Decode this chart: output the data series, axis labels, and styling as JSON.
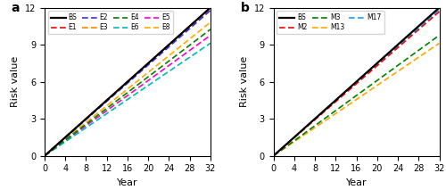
{
  "xlim": [
    0,
    32
  ],
  "ylim": [
    0,
    12
  ],
  "xticks": [
    0,
    4,
    8,
    12,
    16,
    20,
    24,
    28,
    32
  ],
  "yticks": [
    0,
    3,
    6,
    9,
    12
  ],
  "xlabel": "Year",
  "ylabel": "Risk value",
  "panel_a": {
    "label": "a",
    "series": [
      {
        "name": "BS",
        "slope": 0.375,
        "color": "#000000",
        "dashed": false,
        "lw": 1.6,
        "zorder": 10
      },
      {
        "name": "E1",
        "slope": 0.375,
        "color": "#ff0000",
        "dashed": true,
        "lw": 1.2,
        "zorder": 9
      },
      {
        "name": "E2",
        "slope": 0.368,
        "color": "#3030ff",
        "dashed": true,
        "lw": 1.2,
        "zorder": 8
      },
      {
        "name": "E3",
        "slope": 0.372,
        "color": "#ff8800",
        "dashed": true,
        "lw": 1.2,
        "zorder": 7
      },
      {
        "name": "E4",
        "slope": 0.32,
        "color": "#008000",
        "dashed": true,
        "lw": 1.2,
        "zorder": 6
      },
      {
        "name": "E6",
        "slope": 0.285,
        "color": "#00b8b8",
        "dashed": true,
        "lw": 1.2,
        "zorder": 5
      },
      {
        "name": "E5",
        "slope": 0.305,
        "color": "#ff00cc",
        "dashed": true,
        "lw": 1.2,
        "zorder": 4
      },
      {
        "name": "E8",
        "slope": 0.338,
        "color": "#ffaa00",
        "dashed": true,
        "lw": 1.2,
        "zorder": 3
      }
    ],
    "legend_order": [
      "BS",
      "E1",
      "E2",
      "E3",
      "E4",
      "E6",
      "E5",
      "E8"
    ],
    "legend_ncol": 4
  },
  "panel_b": {
    "label": "b",
    "series": [
      {
        "name": "BS",
        "slope": 0.375,
        "color": "#000000",
        "dashed": false,
        "lw": 1.6,
        "zorder": 10
      },
      {
        "name": "M2",
        "slope": 0.365,
        "color": "#ff0000",
        "dashed": true,
        "lw": 1.2,
        "zorder": 9
      },
      {
        "name": "M3",
        "slope": 0.305,
        "color": "#008000",
        "dashed": true,
        "lw": 1.2,
        "zorder": 7
      },
      {
        "name": "M13",
        "slope": 0.285,
        "color": "#ffa500",
        "dashed": true,
        "lw": 1.2,
        "zorder": 6
      },
      {
        "name": "M17",
        "slope": 0.37,
        "color": "#00aaff",
        "dashed": true,
        "lw": 1.2,
        "zorder": 8
      }
    ],
    "legend_order": [
      "BS",
      "M2",
      "M3",
      "M13",
      "M17"
    ],
    "legend_ncol": 3
  }
}
